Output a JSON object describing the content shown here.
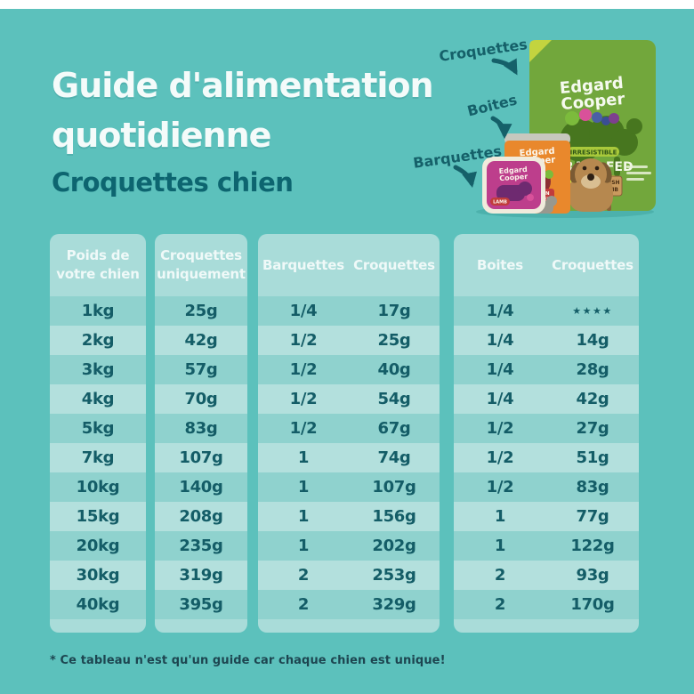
{
  "page": {
    "title_line1": "Guide d'alimentation",
    "title_line2": "quotidienne",
    "subtitle": "Croquettes chien",
    "footnote": "* Ce tableau n'est qu'un guide car chaque chien est unique!"
  },
  "products": {
    "label_croquettes": "Croquettes",
    "label_boites": "Boites",
    "label_barquettes": "Barquettes",
    "bag": {
      "brand_line1": "Edgard",
      "brand_line2": "Cooper",
      "badge": "IRRESISTIBLE",
      "flavor_line1": "GRASS-FED",
      "flavor_line2": "LAMB"
    },
    "can": {
      "brand_line1": "Edgard",
      "brand_line2": "Cooper",
      "flavor_line1": "CHICKEN",
      "flavor_line2": "& TURKEY"
    },
    "tray": {
      "brand_line1": "Edgard",
      "brand_line2": "Cooper",
      "flavor": "LAMB"
    },
    "sign": {
      "line1": "FRESH",
      "line2": "LAMB"
    }
  },
  "table": {
    "weight_header": [
      "Poids de",
      "votre chien"
    ],
    "kibble_header": [
      "Croquettes",
      "uniquement"
    ],
    "tray_group_header": [
      "Barquettes",
      "Croquettes"
    ],
    "can_group_header": [
      "Boites",
      "Croquettes"
    ],
    "rows": [
      [
        "1kg",
        "25g",
        "1/4",
        "17g",
        "1/4",
        "★★★★"
      ],
      [
        "2kg",
        "42g",
        "1/2",
        "25g",
        "1/4",
        "14g"
      ],
      [
        "3kg",
        "57g",
        "1/2",
        "40g",
        "1/4",
        "28g"
      ],
      [
        "4kg",
        "70g",
        "1/2",
        "54g",
        "1/4",
        "42g"
      ],
      [
        "5kg",
        "83g",
        "1/2",
        "67g",
        "1/2",
        "27g"
      ],
      [
        "7kg",
        "107g",
        "1",
        "74g",
        "1/2",
        "51g"
      ],
      [
        "10kg",
        "140g",
        "1",
        "107g",
        "1/2",
        "83g"
      ],
      [
        "15kg",
        "208g",
        "1",
        "156g",
        "1",
        "77g"
      ],
      [
        "20kg",
        "235g",
        "1",
        "202g",
        "1",
        "122g"
      ],
      [
        "30kg",
        "319g",
        "2",
        "253g",
        "2",
        "93g"
      ],
      [
        "40kg",
        "395g",
        "2",
        "329g",
        "2",
        "170g"
      ]
    ]
  },
  "colors": {
    "bg": "#5CC1BC",
    "panel": "#A9DCD9",
    "row_dark": "#8FD2CE",
    "row_light": "#B3E0DD",
    "ink": "#145D67",
    "header_ink": "#EFF9F8",
    "title_ink": "#F4FBFA",
    "subtitle_ink": "#0D6570",
    "label_ink": "#156069",
    "note_ink": "#1D4550",
    "top_strip": "#FFFFFF"
  }
}
